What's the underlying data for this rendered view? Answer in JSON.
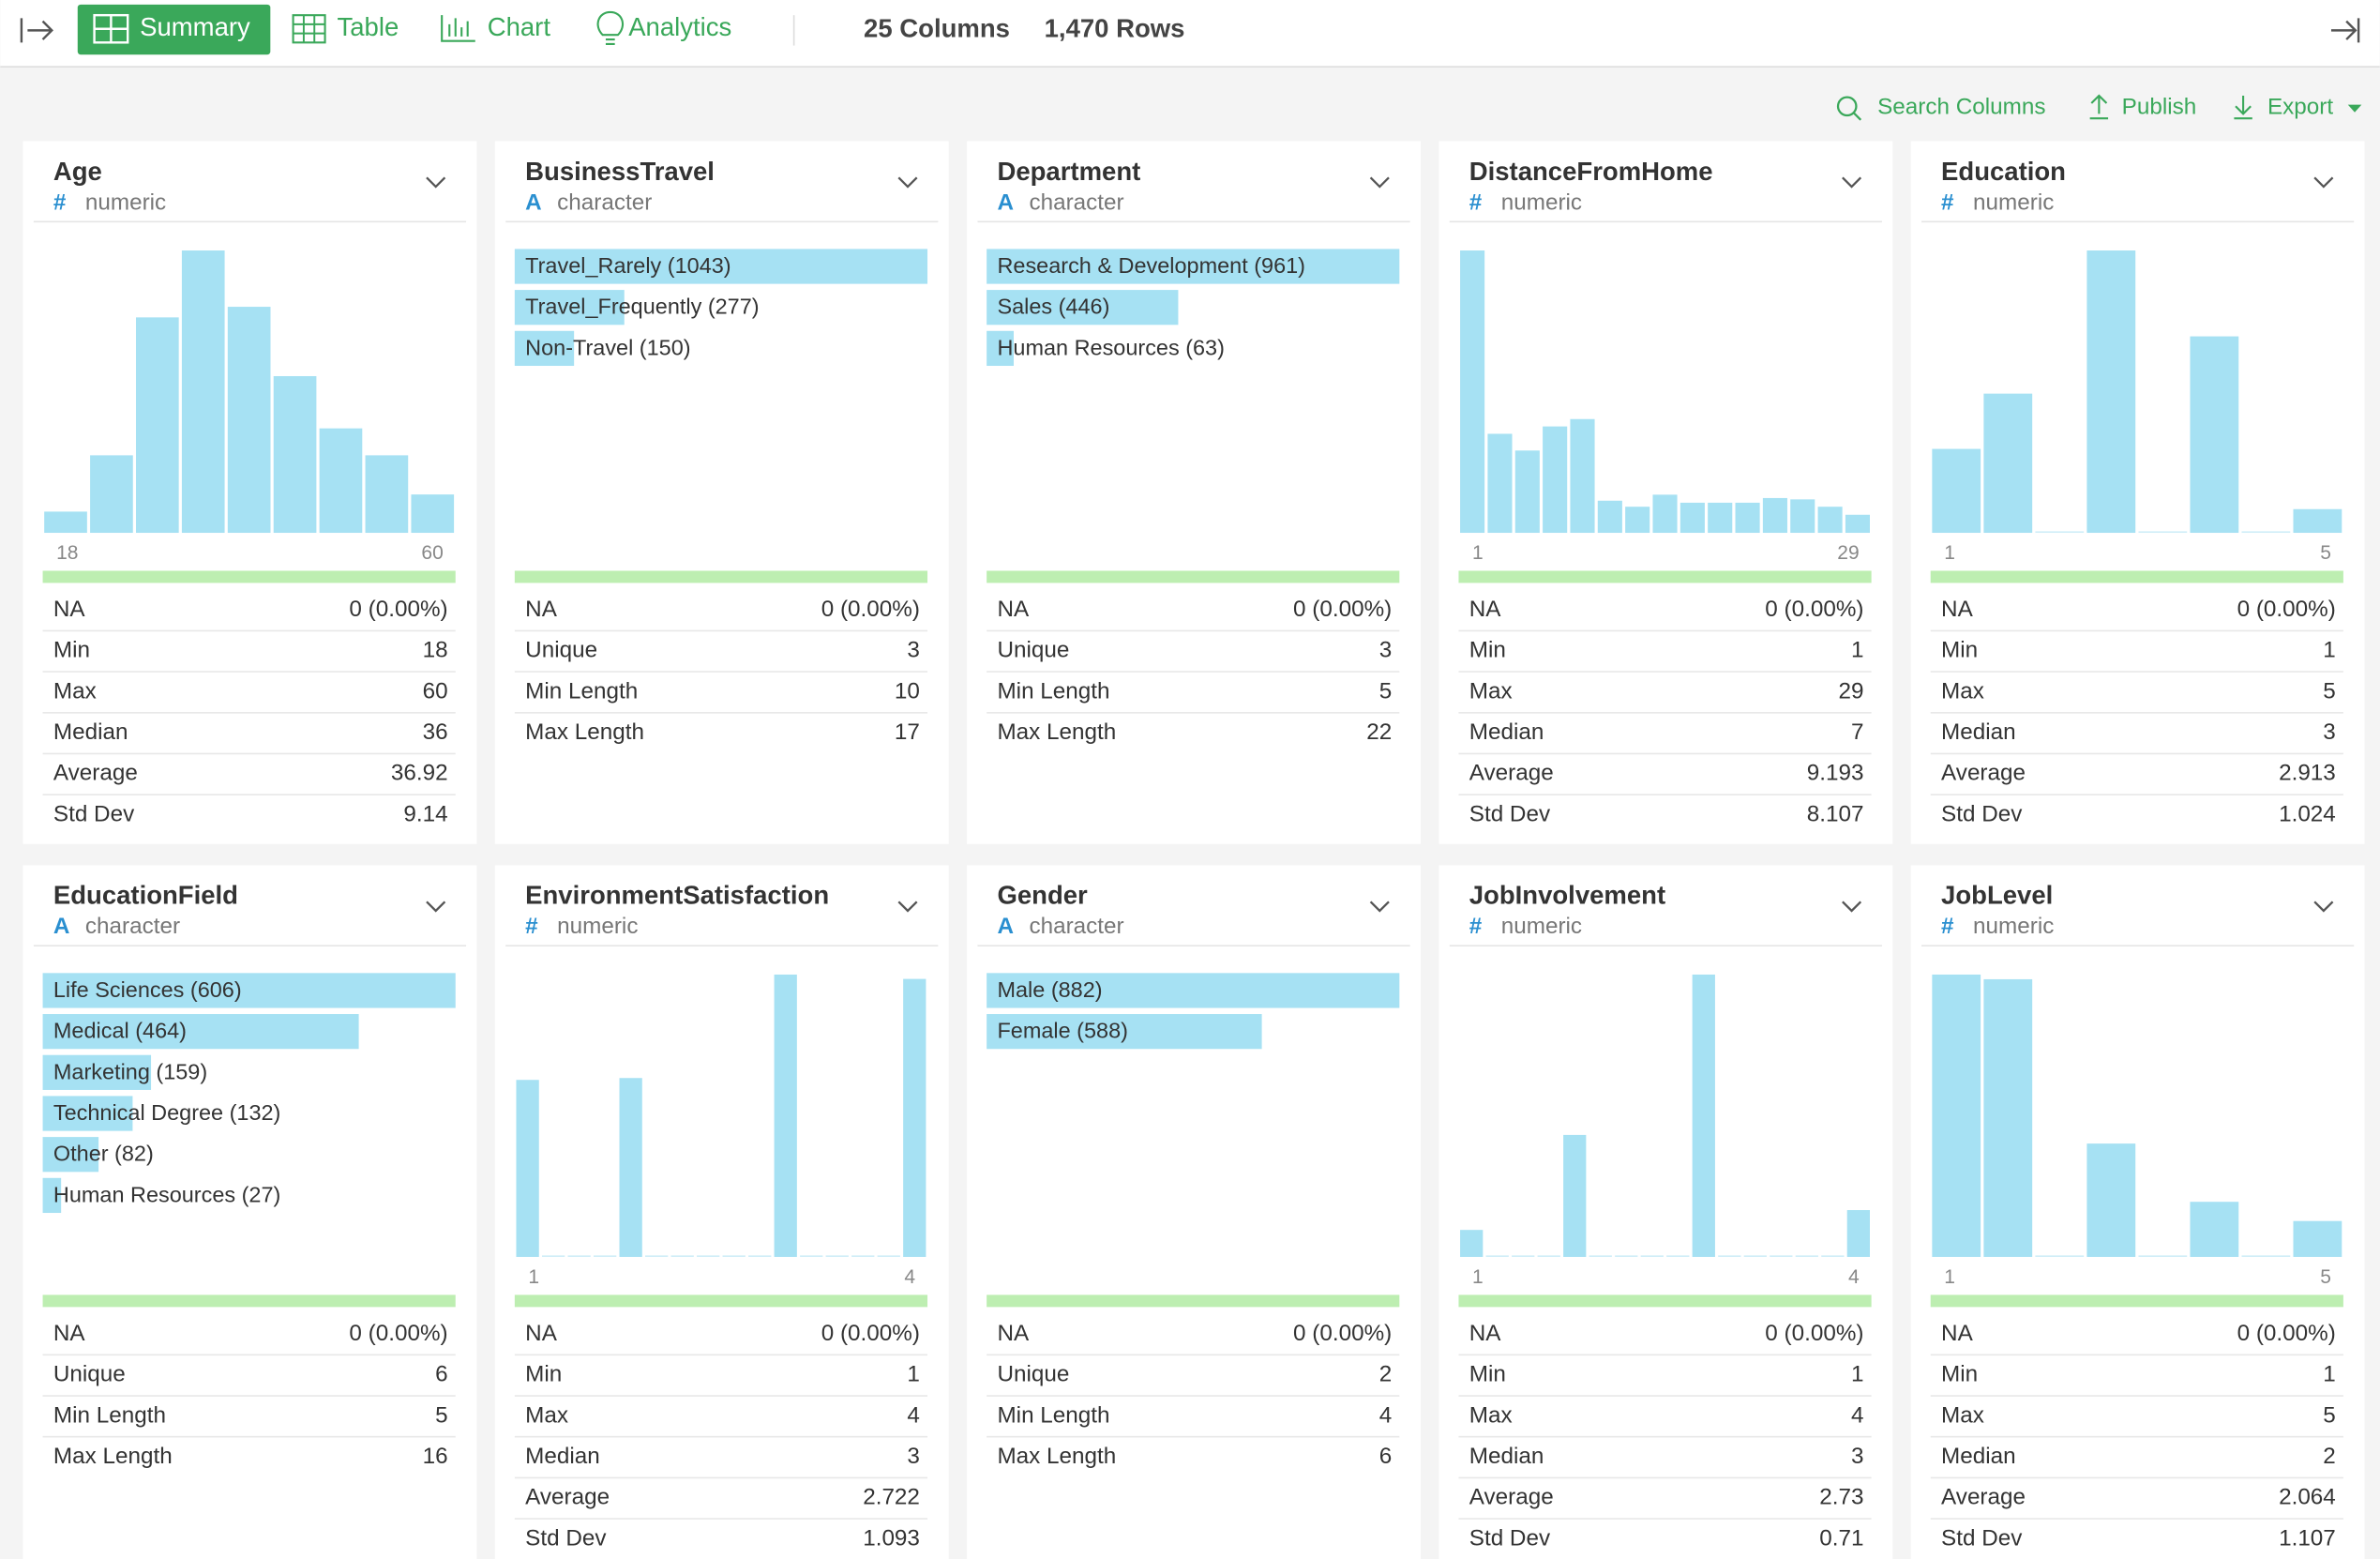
{
  "toolbar": {
    "buttons": [
      "Summary",
      "Table",
      "Chart",
      "Analytics"
    ],
    "columns": "25 Columns",
    "rows": "1,470 Rows"
  },
  "actions": [
    "Search Columns",
    "Publish",
    "Export"
  ],
  "cards": [
    {
      "title": "Age",
      "type_icon": "#",
      "type": "numeric",
      "kind": "hist",
      "values": [
        26,
        95,
        264,
        346,
        277,
        192,
        128,
        95,
        47
      ],
      "range": [
        "18",
        "60"
      ],
      "stats": [
        [
          "NA",
          "0 (0.00%)"
        ],
        [
          "Min",
          "18"
        ],
        [
          "Max",
          "60"
        ],
        [
          "Median",
          "36"
        ],
        [
          "Average",
          "36.92"
        ],
        [
          "Std Dev",
          "9.14"
        ]
      ]
    },
    {
      "title": "BusinessTravel",
      "type_icon": "A",
      "type": "character",
      "kind": "cat",
      "labels": [
        "Travel_Rarely (1043)",
        "Travel_Frequently (277)",
        "Non-Travel (150)"
      ],
      "values": [
        1043,
        277,
        150
      ],
      "stats": [
        [
          "NA",
          "0 (0.00%)"
        ],
        [
          "Unique",
          "3"
        ],
        [
          "Min Length",
          "10"
        ],
        [
          "Max Length",
          "17"
        ]
      ]
    },
    {
      "title": "Department",
      "type_icon": "A",
      "type": "character",
      "kind": "cat",
      "labels": [
        "Research & Development (961)",
        "Sales (446)",
        "Human Resources (63)"
      ],
      "values": [
        961,
        446,
        63
      ],
      "stats": [
        [
          "NA",
          "0 (0.00%)"
        ],
        [
          "Unique",
          "3"
        ],
        [
          "Min Length",
          "5"
        ],
        [
          "Max Length",
          "22"
        ]
      ]
    },
    {
      "title": "DistanceFromHome",
      "type_icon": "#",
      "type": "numeric",
      "kind": "hist",
      "values": [
        422,
        148,
        123,
        159,
        170,
        48,
        39,
        57,
        45,
        45,
        45,
        52,
        50,
        39,
        27
      ],
      "range": [
        "1",
        "29"
      ],
      "stats": [
        [
          "NA",
          "0 (0.00%)"
        ],
        [
          "Min",
          "1"
        ],
        [
          "Max",
          "29"
        ],
        [
          "Median",
          "7"
        ],
        [
          "Average",
          "9.193"
        ],
        [
          "Std Dev",
          "8.107"
        ]
      ]
    },
    {
      "title": "Education",
      "type_icon": "#",
      "type": "numeric",
      "kind": "hist",
      "values": [
        170,
        282,
        0,
        572,
        0,
        398,
        0,
        48
      ],
      "range": [
        "1",
        "5"
      ],
      "stats": [
        [
          "NA",
          "0 (0.00%)"
        ],
        [
          "Min",
          "1"
        ],
        [
          "Max",
          "5"
        ],
        [
          "Median",
          "3"
        ],
        [
          "Average",
          "2.913"
        ],
        [
          "Std Dev",
          "1.024"
        ]
      ]
    },
    {
      "title": "EducationField",
      "type_icon": "A",
      "type": "character",
      "kind": "cat",
      "labels": [
        "Life Sciences (606)",
        "Medical (464)",
        "Marketing (159)",
        "Technical Degree (132)",
        "Other (82)",
        "Human Resources (27)"
      ],
      "values": [
        606,
        464,
        159,
        132,
        82,
        27
      ],
      "stats": [
        [
          "NA",
          "0 (0.00%)"
        ],
        [
          "Unique",
          "6"
        ],
        [
          "Min Length",
          "5"
        ],
        [
          "Max Length",
          "16"
        ]
      ]
    },
    {
      "title": "EnvironmentSatisfaction",
      "type_icon": "#",
      "type": "numeric",
      "kind": "hist",
      "values": [
        284,
        0,
        0,
        0,
        287,
        0,
        0,
        0,
        0,
        0,
        453,
        0,
        0,
        0,
        0,
        446
      ],
      "range": [
        "1",
        "4"
      ],
      "stats": [
        [
          "NA",
          "0 (0.00%)"
        ],
        [
          "Min",
          "1"
        ],
        [
          "Max",
          "4"
        ],
        [
          "Median",
          "3"
        ],
        [
          "Average",
          "2.722"
        ],
        [
          "Std Dev",
          "1.093"
        ]
      ]
    },
    {
      "title": "Gender",
      "type_icon": "A",
      "type": "character",
      "kind": "cat",
      "labels": [
        "Male (882)",
        "Female (588)"
      ],
      "values": [
        882,
        588
      ],
      "stats": [
        [
          "NA",
          "0 (0.00%)"
        ],
        [
          "Unique",
          "2"
        ],
        [
          "Min Length",
          "4"
        ],
        [
          "Max Length",
          "6"
        ]
      ]
    },
    {
      "title": "JobInvolvement",
      "type_icon": "#",
      "type": "numeric",
      "kind": "hist",
      "values": [
        83,
        0,
        0,
        0,
        375,
        0,
        0,
        0,
        0,
        868,
        0,
        0,
        0,
        0,
        0,
        144
      ],
      "range": [
        "1",
        "4"
      ],
      "stats": [
        [
          "NA",
          "0 (0.00%)"
        ],
        [
          "Min",
          "1"
        ],
        [
          "Max",
          "4"
        ],
        [
          "Median",
          "3"
        ],
        [
          "Average",
          "2.73"
        ],
        [
          "Std Dev",
          "0.71"
        ]
      ]
    },
    {
      "title": "JobLevel",
      "type_icon": "#",
      "type": "numeric",
      "kind": "hist",
      "values": [
        543,
        534,
        0,
        218,
        0,
        106,
        0,
        69
      ],
      "range": [
        "1",
        "5"
      ],
      "stats": [
        [
          "NA",
          "0 (0.00%)"
        ],
        [
          "Min",
          "1"
        ],
        [
          "Max",
          "5"
        ],
        [
          "Median",
          "2"
        ],
        [
          "Average",
          "2.064"
        ],
        [
          "Std Dev",
          "1.107"
        ]
      ]
    }
  ]
}
